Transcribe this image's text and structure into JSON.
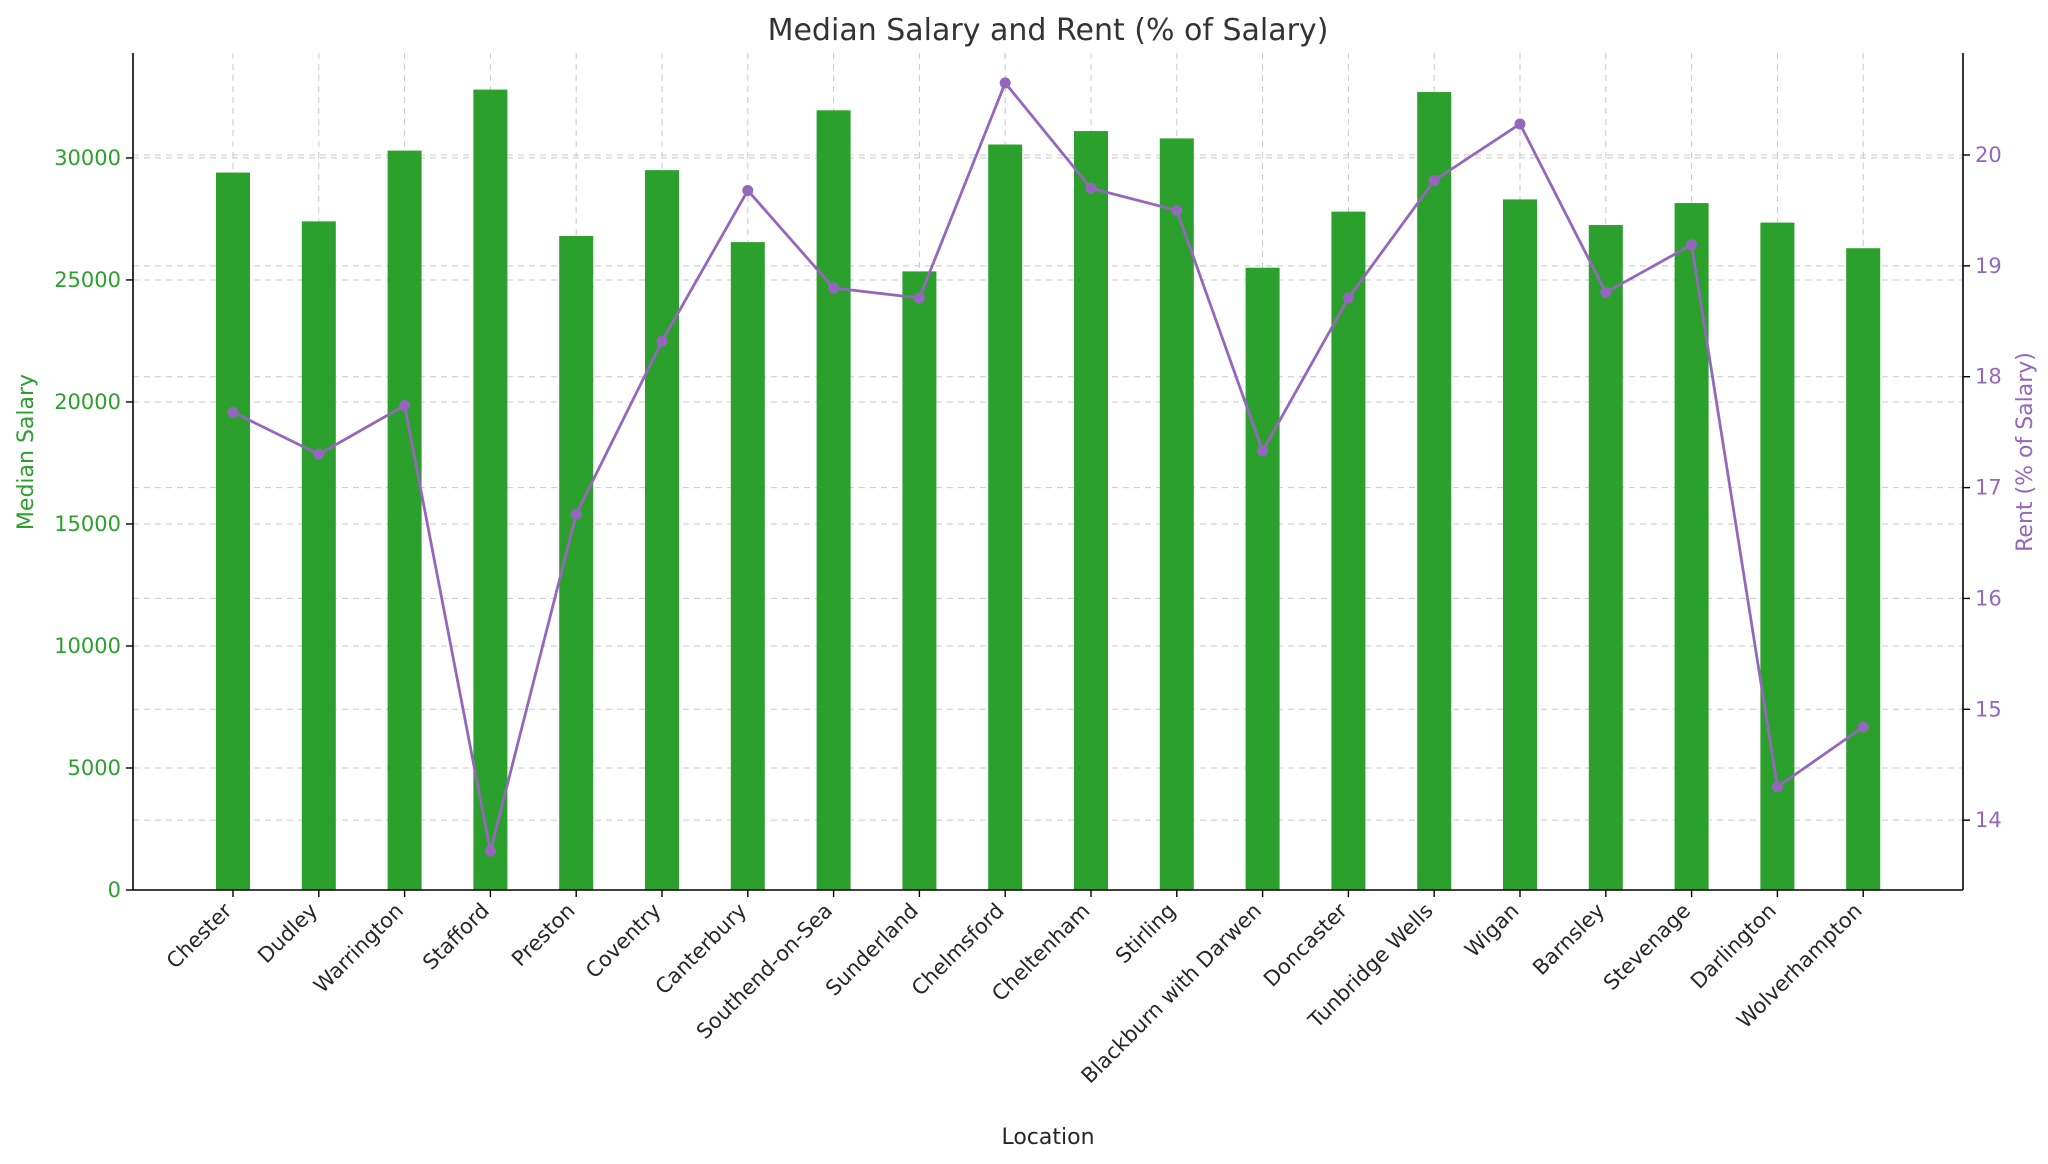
{
  "chart_data": {
    "type": "bar",
    "title": "Median Salary and Rent (% of Salary)",
    "xlabel": "Location",
    "ylabel": "Median Salary",
    "y2label": "Rent (% of Salary)",
    "categories": [
      "Chester",
      "Dudley",
      "Warrington",
      "Stafford",
      "Preston",
      "Coventry",
      "Canterbury",
      "Southend-on-Sea",
      "Sunderland",
      "Chelmsford",
      "Cheltenham",
      "Stirling",
      "Blackburn with Darwen",
      "Doncaster",
      "Tunbridge Wells",
      "Wigan",
      "Barnsley",
      "Stevenage",
      "Darlington",
      "Wolverhampton"
    ],
    "ylim": [
      0,
      34300
    ],
    "y2lim": [
      13.37,
      20.92
    ],
    "yticks": [
      0,
      5000,
      10000,
      15000,
      20000,
      25000,
      30000
    ],
    "y2ticks": [
      14,
      15,
      16,
      17,
      18,
      19,
      20
    ],
    "grid": true,
    "colors": {
      "bars": "#2ca02c",
      "line": "#9467bd"
    },
    "series": [
      {
        "type": "bar",
        "axis": "left",
        "values": [
          29400,
          27400,
          30300,
          32800,
          26800,
          29500,
          26550,
          31950,
          25350,
          30550,
          31100,
          30800,
          25500,
          27800,
          32700,
          28300,
          27250,
          28150,
          27350,
          26300
        ]
      },
      {
        "type": "line",
        "axis": "right",
        "values": [
          17.68,
          17.3,
          17.74,
          13.72,
          16.76,
          18.32,
          19.68,
          18.8,
          18.71,
          20.65,
          19.7,
          19.5,
          17.33,
          18.71,
          19.77,
          20.28,
          18.76,
          19.19,
          14.3,
          14.84
        ]
      }
    ]
  }
}
